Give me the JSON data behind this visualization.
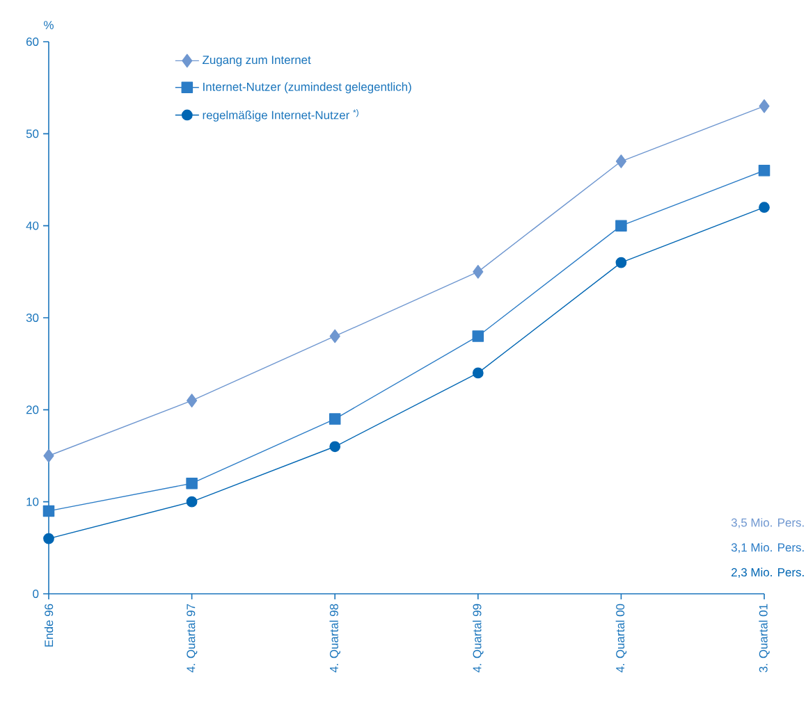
{
  "chart_data": {
    "type": "line",
    "ylabel": "%",
    "categories": [
      "Ende 96",
      "4. Quartal 97",
      "4. Quartal 98",
      "4. Quartal 99",
      "4. Quartal 00",
      "3. Quartal 01"
    ],
    "series": [
      {
        "name": "Zugang zum Internet",
        "color": "#6f97d0",
        "marker": "diamond",
        "values": [
          15,
          21,
          28,
          35,
          47,
          53
        ]
      },
      {
        "name": "Internet-Nutzer (zumindest gelegentlich)",
        "color": "#2b7cc6",
        "marker": "square",
        "values": [
          9,
          12,
          19,
          28,
          40,
          46
        ]
      },
      {
        "name": "regelmäßige Internet-Nutzer $^{*)}$",
        "color": "#0066b3",
        "marker": "circle",
        "values": [
          6,
          10,
          16,
          24,
          36,
          42
        ]
      }
    ],
    "annotations": [
      "3,5 Mio. Pers.",
      "3,1 Mio. Pers.",
      "2,3 Mio. Pers."
    ],
    "ylim": [
      0,
      60
    ],
    "yticks": [
      0,
      10,
      20,
      30,
      40,
      50,
      60
    ],
    "grid": false,
    "legend": "top left",
    "line_style": "solid"
  }
}
